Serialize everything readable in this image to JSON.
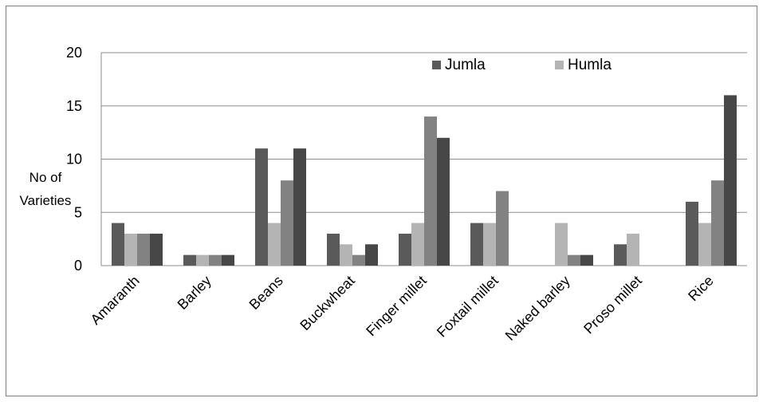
{
  "chart_data": {
    "type": "bar",
    "ylabel": "No of Varieties",
    "ylabel_lines": [
      "No of",
      "Varieties"
    ],
    "ylim": [
      0,
      20
    ],
    "yticks": [
      0,
      5,
      10,
      15,
      20
    ],
    "grid": "horizontal major gridlines",
    "legend_position": "top-right, inside plot",
    "categories": [
      "Amaranth",
      "Barley",
      "Beans",
      "Buckwheat",
      "Finger millet",
      "Foxtail millet",
      "Naked barley",
      "Proso millet",
      "Rice"
    ],
    "series": [
      {
        "name": "Jumla",
        "color": "#5a5a5a",
        "show_in_legend": true,
        "values": [
          4,
          1,
          11,
          3,
          3,
          4,
          0,
          2,
          6
        ]
      },
      {
        "name": "Humla",
        "color": "#b4b4b4",
        "show_in_legend": true,
        "values": [
          3,
          1,
          4,
          2,
          4,
          4,
          4,
          3,
          4
        ]
      },
      {
        "name": "",
        "color": "#828282",
        "show_in_legend": false,
        "values": [
          3,
          1,
          8,
          1,
          14,
          7,
          1,
          0,
          8
        ]
      },
      {
        "name": "",
        "color": "#474747",
        "show_in_legend": false,
        "values": [
          3,
          1,
          11,
          2,
          12,
          0,
          1,
          0,
          16
        ]
      }
    ]
  }
}
